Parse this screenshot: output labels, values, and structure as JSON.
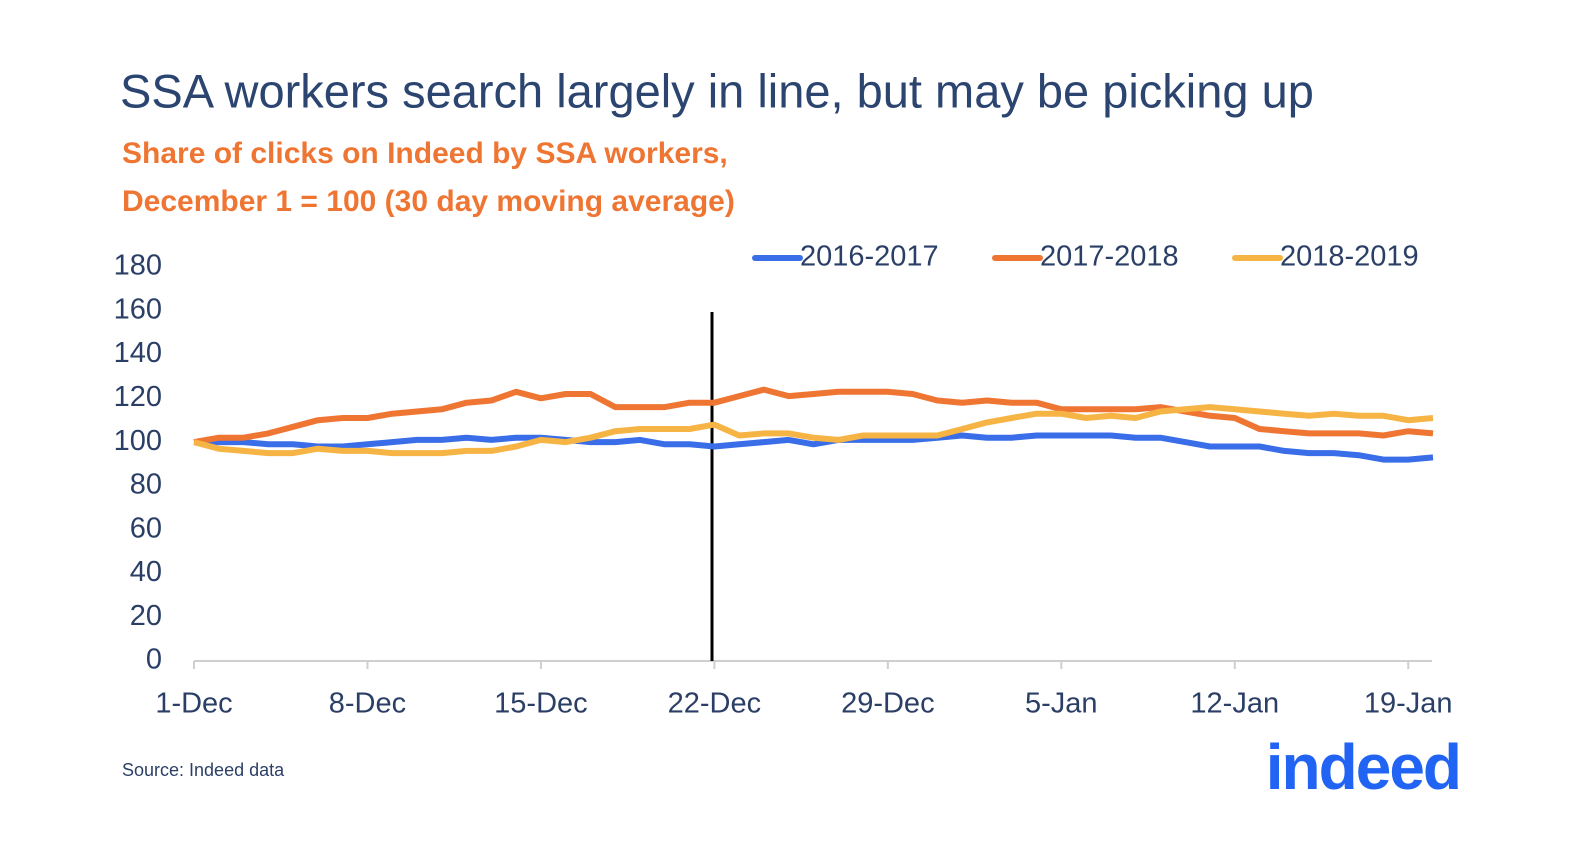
{
  "chart_data": {
    "type": "line",
    "title": "SSA workers search largely in line, but may be picking up",
    "subtitle": [
      "Share of clicks on Indeed by SSA workers,",
      "December 1 = 100 (30 day moving average)"
    ],
    "source": "Source: Indeed data",
    "logo": "indeed",
    "categories": [
      "1-Dec",
      null,
      null,
      null,
      null,
      null,
      null,
      "8-Dec",
      null,
      null,
      null,
      null,
      null,
      null,
      "15-Dec",
      null,
      null,
      null,
      null,
      null,
      null,
      "22-Dec",
      null,
      null,
      null,
      null,
      null,
      null,
      "29-Dec",
      null,
      null,
      null,
      null,
      null,
      null,
      "5-Jan",
      null,
      null,
      null,
      null,
      null,
      null,
      "12-Jan",
      null,
      null,
      null,
      null,
      null,
      null,
      "19-Jan",
      null
    ],
    "series": [
      {
        "name": "2016-2017",
        "color": "#3a6ee8",
        "values": [
          100,
          100,
          100,
          99,
          99,
          98,
          98,
          99,
          100,
          101,
          101,
          102,
          101,
          102,
          102,
          101,
          100,
          100,
          101,
          99,
          99,
          98,
          99,
          100,
          101,
          99,
          101,
          101,
          101,
          101,
          102,
          103,
          102,
          102,
          103,
          103,
          103,
          103,
          102,
          102,
          100,
          98,
          98,
          98,
          96,
          95,
          95,
          94,
          92,
          92,
          93
        ]
      },
      {
        "name": "2017-2018",
        "color": "#ef7533",
        "values": [
          100,
          102,
          102,
          104,
          107,
          110,
          111,
          111,
          113,
          114,
          115,
          118,
          119,
          123,
          120,
          122,
          122,
          116,
          116,
          116,
          118,
          118,
          121,
          124,
          121,
          122,
          123,
          123,
          123,
          122,
          119,
          118,
          119,
          118,
          118,
          115,
          115,
          115,
          115,
          116,
          114,
          112,
          111,
          106,
          105,
          104,
          104,
          104,
          103,
          105,
          104
        ]
      },
      {
        "name": "2018-2019",
        "color": "#f6b445",
        "values": [
          100,
          97,
          96,
          95,
          95,
          97,
          96,
          96,
          95,
          95,
          95,
          96,
          96,
          98,
          101,
          100,
          102,
          105,
          106,
          106,
          106,
          108,
          103,
          104,
          104,
          102,
          101,
          103,
          103,
          103,
          103,
          106,
          109,
          111,
          113,
          113,
          111,
          112,
          111,
          114,
          115,
          116,
          115,
          114,
          113,
          112,
          113,
          112,
          112,
          110,
          111
        ]
      }
    ],
    "ylim": [
      0,
      180
    ],
    "yticks": [
      0,
      20,
      40,
      60,
      80,
      100,
      120,
      140,
      160,
      180
    ]
  }
}
